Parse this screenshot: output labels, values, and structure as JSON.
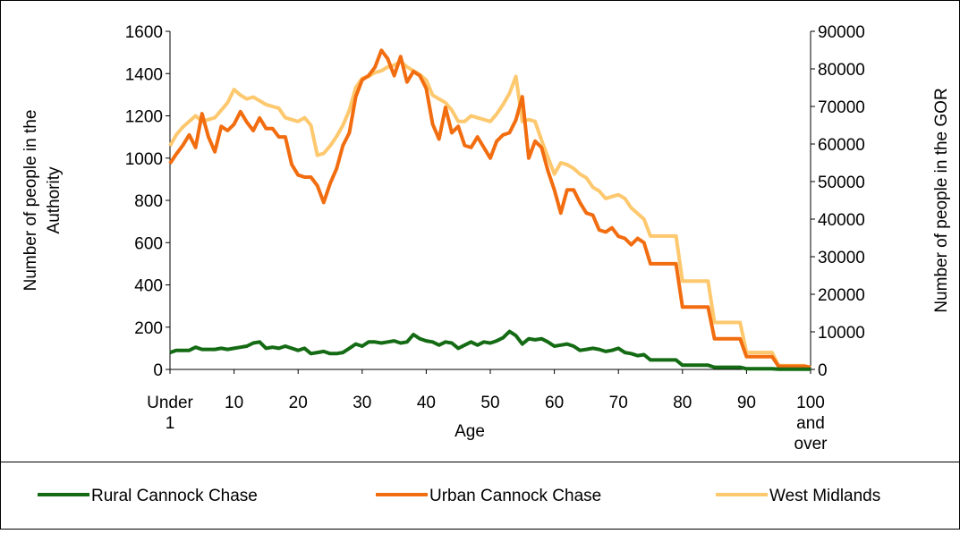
{
  "chart_data": {
    "type": "line",
    "xlabel": "Age",
    "ylabel": "Number of people in the Authority",
    "y2label": "Number of people in the GOR",
    "categories": [
      "Under 1",
      null,
      null,
      null,
      null,
      null,
      null,
      null,
      null,
      null,
      "10",
      null,
      null,
      null,
      null,
      null,
      null,
      null,
      null,
      null,
      "20",
      null,
      null,
      null,
      null,
      null,
      null,
      null,
      null,
      null,
      "30",
      null,
      null,
      null,
      null,
      null,
      null,
      null,
      null,
      null,
      "40",
      null,
      null,
      null,
      null,
      null,
      null,
      null,
      null,
      null,
      "50",
      null,
      null,
      null,
      null,
      null,
      null,
      null,
      null,
      null,
      "60",
      null,
      null,
      null,
      null,
      null,
      null,
      null,
      null,
      null,
      "70",
      null,
      null,
      null,
      null,
      null,
      null,
      null,
      null,
      null,
      "80",
      null,
      null,
      null,
      null,
      null,
      null,
      null,
      null,
      null,
      "90",
      null,
      null,
      null,
      null,
      null,
      null,
      null,
      null,
      null,
      "100 and over"
    ],
    "ylim": [
      0,
      1600
    ],
    "yticks": [
      0,
      200,
      400,
      600,
      800,
      1000,
      1200,
      1400,
      1600
    ],
    "y2lim": [
      0,
      90000
    ],
    "y2ticks": [
      0,
      10000,
      20000,
      30000,
      40000,
      50000,
      60000,
      70000,
      80000,
      90000
    ],
    "legend": "bottom",
    "series": [
      {
        "name": "Rural Cannock Chase",
        "color": "#146b14",
        "values": [
          80,
          90,
          90,
          90,
          105,
          95,
          95,
          95,
          100,
          95,
          100,
          105,
          110,
          125,
          130,
          100,
          105,
          100,
          110,
          100,
          90,
          100,
          75,
          80,
          85,
          75,
          75,
          80,
          100,
          120,
          110,
          130,
          130,
          125,
          130,
          135,
          125,
          130,
          165,
          145,
          135,
          130,
          115,
          130,
          125,
          100,
          115,
          130,
          115,
          130,
          125,
          135,
          150,
          180,
          160,
          120,
          145,
          140,
          145,
          130,
          110,
          115,
          120,
          110,
          90,
          95,
          100,
          95,
          85,
          90,
          100,
          80,
          75,
          65,
          70,
          45,
          45,
          45,
          45,
          45,
          20,
          20,
          20,
          20,
          20,
          10,
          10,
          10,
          10,
          10,
          3,
          3,
          3,
          3,
          3,
          1,
          1,
          1,
          1,
          1,
          1
        ]
      },
      {
        "name": "Urban Cannock Chase",
        "color": "#f26d10",
        "values": [
          975,
          1020,
          1060,
          1110,
          1050,
          1210,
          1100,
          1030,
          1150,
          1130,
          1160,
          1220,
          1170,
          1130,
          1190,
          1140,
          1140,
          1100,
          1100,
          970,
          920,
          910,
          910,
          870,
          790,
          880,
          950,
          1060,
          1120,
          1290,
          1370,
          1390,
          1430,
          1510,
          1470,
          1390,
          1480,
          1360,
          1410,
          1390,
          1330,
          1160,
          1090,
          1240,
          1120,
          1150,
          1060,
          1050,
          1100,
          1050,
          1000,
          1080,
          1110,
          1120,
          1180,
          1290,
          1000,
          1080,
          1050,
          940,
          850,
          740,
          850,
          850,
          790,
          740,
          730,
          660,
          650,
          670,
          630,
          620,
          590,
          620,
          600,
          500,
          500,
          500,
          500,
          500,
          295,
          295,
          295,
          295,
          295,
          145,
          145,
          145,
          145,
          145,
          60,
          60,
          60,
          60,
          60,
          15,
          15,
          15,
          15,
          15,
          10
        ]
      },
      {
        "name": "West Midlands",
        "color": "#fdc86e",
        "axis": "y2",
        "values": [
          59500,
          62500,
          64500,
          66000,
          67500,
          66000,
          66500,
          67000,
          69000,
          71000,
          74500,
          73000,
          72000,
          72500,
          71500,
          70500,
          70000,
          69500,
          67000,
          66500,
          66000,
          67000,
          65000,
          57000,
          57500,
          59500,
          62000,
          65000,
          69000,
          75000,
          77500,
          78000,
          79000,
          79500,
          80500,
          81000,
          82000,
          80500,
          79500,
          78500,
          77000,
          73000,
          72000,
          71000,
          69000,
          66000,
          66000,
          67500,
          67000,
          66500,
          66000,
          68000,
          70500,
          73500,
          78000,
          66000,
          66500,
          66000,
          61000,
          56500,
          52000,
          55000,
          54500,
          53500,
          52000,
          51000,
          48500,
          47500,
          45500,
          46000,
          46500,
          45500,
          43000,
          41500,
          40000,
          35500,
          35500,
          35500,
          35500,
          35500,
          23500,
          23500,
          23500,
          23500,
          23500,
          12500,
          12500,
          12500,
          12500,
          12500,
          4500,
          4500,
          4500,
          4500,
          4500,
          1000,
          1000,
          1000,
          1000,
          1000,
          500
        ]
      }
    ]
  }
}
